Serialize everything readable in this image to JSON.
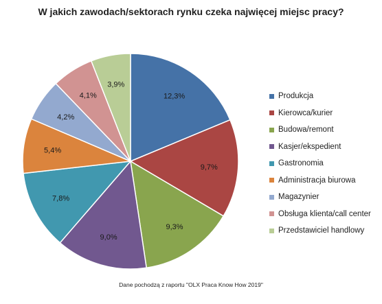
{
  "chart_data": {
    "type": "pie",
    "title": "W jakich zawodach/sektorach rynku czeka najwięcej miejsc pracy?",
    "categories": [
      "Produkcja",
      "Kierowca/kurier",
      "Budowa/remont",
      "Kasjer/ekspedient",
      "Gastronomia",
      "Administracja biurowa",
      "Magazynier",
      "Obsługa klienta/call center",
      "Przedstawiciel handlowy"
    ],
    "values": [
      12.3,
      9.7,
      9.3,
      9.0,
      7.8,
      5.4,
      4.2,
      4.1,
      3.9
    ],
    "labels": [
      "12,3%",
      "9,7%",
      "9,3%",
      "9,0%",
      "7,8%",
      "5,4%",
      "4,2%",
      "4,1%",
      "3,9%"
    ],
    "colors": [
      "#4572a7",
      "#aa4643",
      "#89a54e",
      "#71588f",
      "#4198af",
      "#db843d",
      "#93a9cf",
      "#d19392",
      "#b9cd96"
    ],
    "legend": "right"
  },
  "footnote": "Dane pochodzą z raportu \"OLX Praca Know How 2019\""
}
